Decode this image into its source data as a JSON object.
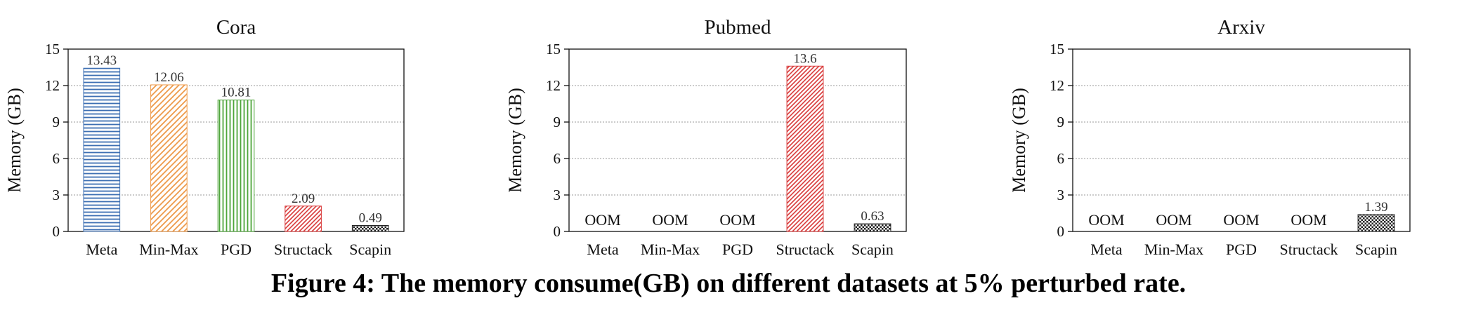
{
  "figure": {
    "caption": "Figure 4: The memory consume(GB) on different datasets at 5% perturbed rate."
  },
  "colors": {
    "Meta": "#3d6fb3",
    "Min-Max": "#ee9a4a",
    "PGD": "#4ea53a",
    "Structack": "#d93a3a",
    "Scapin": "#222222"
  },
  "chart_data": [
    {
      "type": "bar",
      "title": "Cora",
      "ylabel": "Memory (GB)",
      "xlabel": "",
      "ylim": [
        0,
        15
      ],
      "yticks": [
        "0",
        "3",
        "6",
        "9",
        "12",
        "15"
      ],
      "grid": true,
      "categories": [
        "Meta",
        "Min-Max",
        "PGD",
        "Structack",
        "Scapin"
      ],
      "values": [
        13.43,
        12.06,
        10.81,
        2.09,
        0.49
      ],
      "labels": [
        "13.43",
        "12.06",
        "10.81",
        "2.09",
        "0.49"
      ]
    },
    {
      "type": "bar",
      "title": "Pubmed",
      "ylabel": "Memory (GB)",
      "xlabel": "",
      "ylim": [
        0,
        15
      ],
      "yticks": [
        "0",
        "3",
        "6",
        "9",
        "12",
        "15"
      ],
      "grid": true,
      "categories": [
        "Meta",
        "Min-Max",
        "PGD",
        "Structack",
        "Scapin"
      ],
      "values": [
        null,
        null,
        null,
        13.6,
        0.63
      ],
      "labels": [
        "OOM",
        "OOM",
        "OOM",
        "13.6",
        "0.63"
      ]
    },
    {
      "type": "bar",
      "title": "Arxiv",
      "ylabel": "Memory (GB)",
      "xlabel": "",
      "ylim": [
        0,
        15
      ],
      "yticks": [
        "0",
        "3",
        "6",
        "9",
        "12",
        "15"
      ],
      "grid": true,
      "categories": [
        "Meta",
        "Min-Max",
        "PGD",
        "Structack",
        "Scapin"
      ],
      "values": [
        null,
        null,
        null,
        null,
        1.39
      ],
      "labels": [
        "OOM",
        "OOM",
        "OOM",
        "OOM",
        "1.39"
      ]
    }
  ]
}
